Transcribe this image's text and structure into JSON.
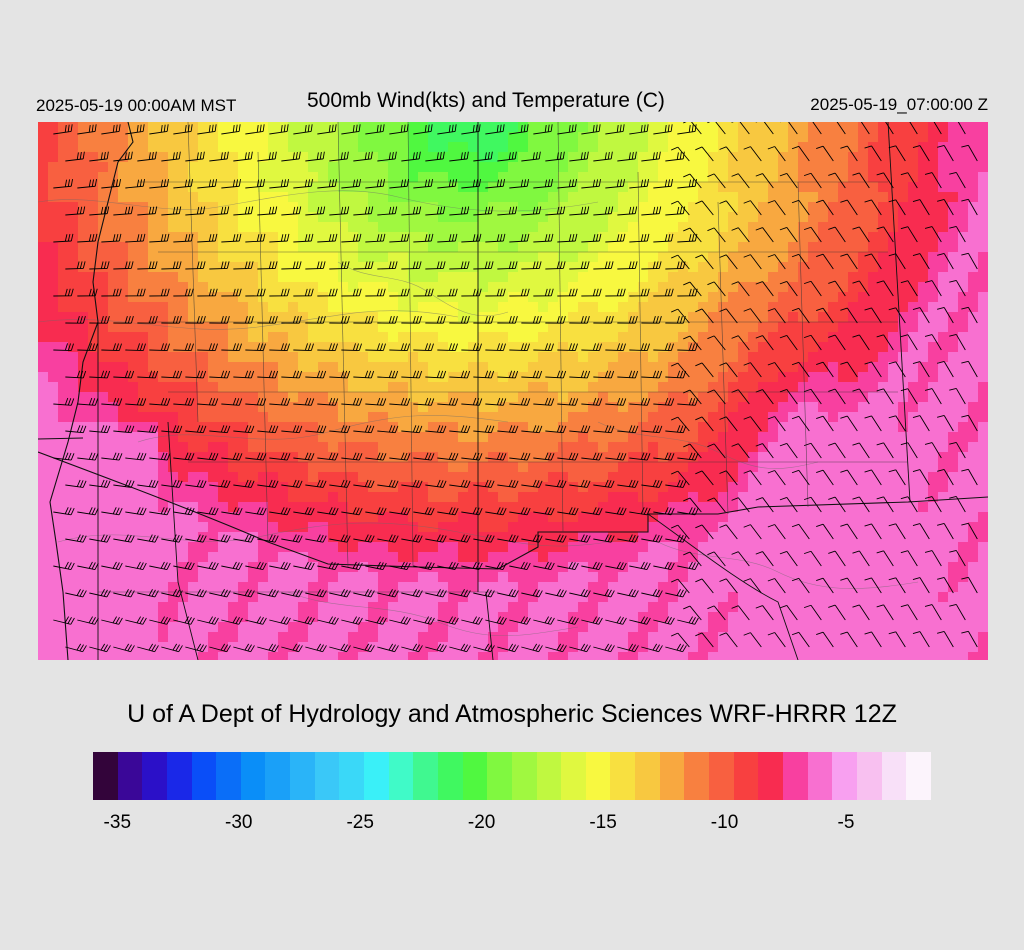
{
  "header": {
    "local_time": "2025-05-19 00:00AM MST",
    "title": "500mb Wind(kts) and Temperature (C)",
    "valid_time": "2025-05-19_07:00:00 Z"
  },
  "credit": "U of A Dept of Hydrology and Atmospheric Sciences WRF-HRRR 12Z",
  "colorbar": {
    "colors": [
      "#33043a",
      "#3a0798",
      "#2b10c8",
      "#1a28e8",
      "#0a4ef8",
      "#0a6ef8",
      "#0a8ef8",
      "#1aa0f8",
      "#2ab4f8",
      "#3ac8f8",
      "#3ad8f8",
      "#3af0f8",
      "#40fac8",
      "#40f890",
      "#40f860",
      "#50f840",
      "#80f840",
      "#a0f840",
      "#c0f840",
      "#e0f840",
      "#f8f840",
      "#f8e040",
      "#f8c840",
      "#f8a840",
      "#f88040",
      "#f86040",
      "#f84040",
      "#f82c50",
      "#f840a0",
      "#f870d0",
      "#f8a0f0",
      "#f8c0f0",
      "#f8e0f8",
      "#fcf4fc"
    ],
    "tick_labels": [
      "-35",
      "-30",
      "-25",
      "-20",
      "-15",
      "-10",
      "-5"
    ],
    "tick_values": [
      -35,
      -30,
      -25,
      -20,
      -15,
      -10,
      -5
    ],
    "range": [
      -36,
      -1.5
    ]
  },
  "map": {
    "field": "500mb temperature (C) with wind barbs (kts)",
    "temp_min_shown": -22,
    "temp_max_shown": -6
  }
}
